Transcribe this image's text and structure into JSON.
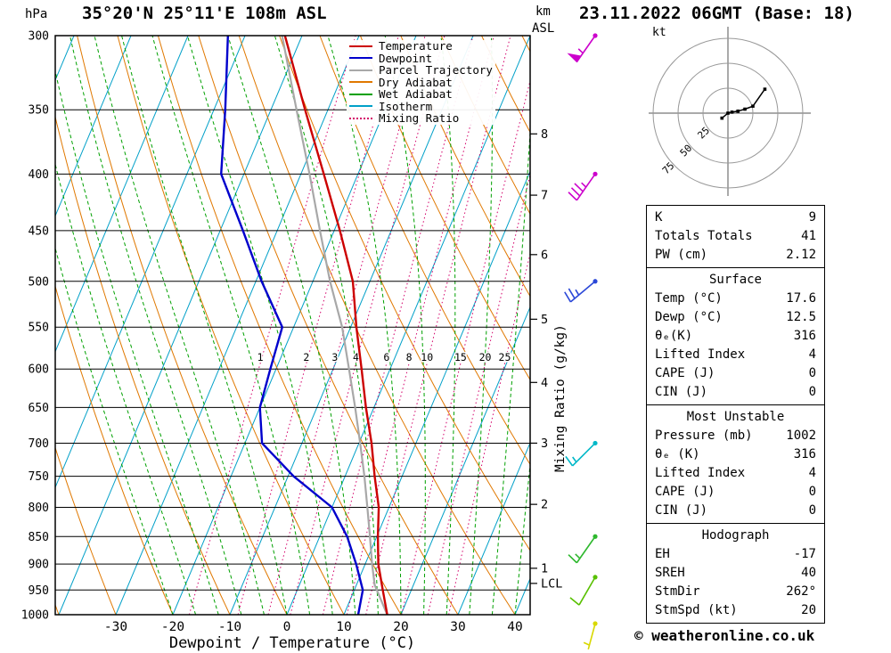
{
  "header": {
    "title": "35°20'N 25°11'E 108m ASL",
    "date_label": "23.11.2022 06GMT (Base: 18)"
  },
  "footer": {
    "copyright": "© weatheronline.co.uk"
  },
  "axes": {
    "pressure_unit": "hPa",
    "km_unit": "km",
    "asl_unit": "ASL",
    "temp_label": "Dewpoint / Temperature (°C)",
    "mixing_ratio_label": "Mixing Ratio (g/kg)",
    "lcl_label": "LCL",
    "pressure_ticks": [
      300,
      350,
      400,
      450,
      500,
      550,
      600,
      650,
      700,
      750,
      800,
      850,
      900,
      950,
      1000
    ],
    "temp_ticks": [
      -30,
      -20,
      -10,
      0,
      10,
      20,
      30,
      40
    ]
  },
  "legend": [
    {
      "label": "Temperature",
      "color_key": "temperature",
      "dash": "solid"
    },
    {
      "label": "Dewpoint",
      "color_key": "dewpoint",
      "dash": "solid"
    },
    {
      "label": "Parcel Trajectory",
      "color_key": "parcel",
      "dash": "solid"
    },
    {
      "label": "Dry Adiabat",
      "color_key": "dry_adiabat",
      "dash": "solid"
    },
    {
      "label": "Wet Adiabat",
      "color_key": "wet_adiabat",
      "dash": "solid"
    },
    {
      "label": "Isotherm",
      "color_key": "isotherm",
      "dash": "solid"
    },
    {
      "label": "Mixing Ratio",
      "color_key": "mixing_ratio",
      "dash": "dotted"
    }
  ],
  "colors": {
    "temperature": "#cc0000",
    "dewpoint": "#0000cc",
    "parcel": "#a8a8a8",
    "dry_adiabat": "#e07800",
    "wet_adiabat": "#00a000",
    "isotherm": "#00a0c8",
    "mixing_ratio": "#d4006a"
  },
  "chart_data": {
    "type": "skewt_logp_sounding",
    "pressure_range_hpa": [
      300,
      1000
    ],
    "temp_axis_range_c": [
      -40,
      40
    ],
    "temperature_profile": [
      [
        1000,
        17.6
      ],
      [
        950,
        15.0
      ],
      [
        900,
        12.3
      ],
      [
        850,
        10.2
      ],
      [
        800,
        8.2
      ],
      [
        750,
        5.2
      ],
      [
        700,
        2.2
      ],
      [
        650,
        -1.4
      ],
      [
        600,
        -5.0
      ],
      [
        550,
        -9.0
      ],
      [
        500,
        -13.0
      ],
      [
        450,
        -19.0
      ],
      [
        400,
        -26.0
      ],
      [
        350,
        -34.0
      ],
      [
        300,
        -43.0
      ]
    ],
    "dewpoint_profile": [
      [
        1000,
        12.5
      ],
      [
        950,
        11.5
      ],
      [
        900,
        8.4
      ],
      [
        850,
        4.8
      ],
      [
        800,
        0.0
      ],
      [
        750,
        -9.0
      ],
      [
        700,
        -17.0
      ],
      [
        650,
        -20.0
      ],
      [
        600,
        -21.0
      ],
      [
        550,
        -22.0
      ],
      [
        500,
        -29.0
      ],
      [
        450,
        -36.0
      ],
      [
        400,
        -44.0
      ],
      [
        350,
        -48.0
      ],
      [
        300,
        -53.0
      ]
    ],
    "parcel_profile": [
      [
        1000,
        17.6
      ],
      [
        940,
        13.2
      ],
      [
        900,
        11.2
      ],
      [
        850,
        8.8
      ],
      [
        800,
        6.2
      ],
      [
        750,
        3.4
      ],
      [
        700,
        0.2
      ],
      [
        650,
        -3.3
      ],
      [
        600,
        -7.2
      ],
      [
        550,
        -11.5
      ],
      [
        500,
        -17.0
      ],
      [
        450,
        -22.5
      ],
      [
        400,
        -28.5
      ],
      [
        350,
        -35.5
      ],
      [
        300,
        -43.5
      ]
    ],
    "isotherm_step_c": 10,
    "dry_adiabat_step_c": 10,
    "wet_adiabat_step_c": 4,
    "mixing_ratio_lines_gkg": [
      1,
      2,
      3,
      4,
      6,
      8,
      10,
      15,
      20,
      25
    ],
    "mixing_ratio_label_pressure": 593,
    "km_asl_ticks": [
      {
        "km": 1,
        "p": 908
      },
      {
        "km": 2,
        "p": 795
      },
      {
        "km": 3,
        "p": 700
      },
      {
        "km": 4,
        "p": 617
      },
      {
        "km": 5,
        "p": 541
      },
      {
        "km": 6,
        "p": 473
      },
      {
        "km": 7,
        "p": 418
      },
      {
        "km": 8,
        "p": 368
      }
    ],
    "lcl": {
      "pressure": 937
    },
    "wind_barbs": [
      {
        "p": 300,
        "speed_kt": 55,
        "dir_deg": 215,
        "color": "#cc00cc"
      },
      {
        "p": 400,
        "speed_kt": 35,
        "dir_deg": 215,
        "color": "#cc00cc"
      },
      {
        "p": 500,
        "speed_kt": 25,
        "dir_deg": 230,
        "color": "#2b48d8"
      },
      {
        "p": 700,
        "speed_kt": 15,
        "dir_deg": 225,
        "color": "#00b8c8"
      },
      {
        "p": 850,
        "speed_kt": 15,
        "dir_deg": 215,
        "color": "#2eb82e"
      },
      {
        "p": 925,
        "speed_kt": 10,
        "dir_deg": 210,
        "color": "#58c000"
      },
      {
        "p": 1000,
        "speed_kt": 5,
        "dir_deg": 195,
        "color": "#d8d800"
      }
    ],
    "hodograph": {
      "unit": "kt",
      "rings_kt": [
        25,
        50,
        75
      ],
      "trace_uv_kt": [
        [
          -6,
          -5
        ],
        [
          0,
          0
        ],
        [
          4,
          1
        ],
        [
          10,
          2
        ],
        [
          17,
          4
        ],
        [
          25,
          7
        ],
        [
          37,
          24
        ]
      ]
    }
  },
  "tables": {
    "indices": {
      "rows": [
        [
          "K",
          "9"
        ],
        [
          "Totals Totals",
          "41"
        ],
        [
          "PW (cm)",
          "2.12"
        ]
      ]
    },
    "surface": {
      "header": "Surface",
      "rows": [
        [
          "Temp (°C)",
          "17.6"
        ],
        [
          "Dewp (°C)",
          "12.5"
        ],
        [
          "θₑ(K)",
          "316"
        ],
        [
          "Lifted Index",
          "4"
        ],
        [
          "CAPE (J)",
          "0"
        ],
        [
          "CIN (J)",
          "0"
        ]
      ]
    },
    "most_unstable": {
      "header": "Most Unstable",
      "rows": [
        [
          "Pressure (mb)",
          "1002"
        ],
        [
          "θₑ (K)",
          "316"
        ],
        [
          "Lifted Index",
          "4"
        ],
        [
          "CAPE (J)",
          "0"
        ],
        [
          "CIN (J)",
          "0"
        ]
      ]
    },
    "hodograph": {
      "header": "Hodograph",
      "rows": [
        [
          "EH",
          "-17"
        ],
        [
          "SREH",
          "40"
        ],
        [
          "StmDir",
          "262°"
        ],
        [
          "StmSpd (kt)",
          "20"
        ]
      ]
    }
  }
}
